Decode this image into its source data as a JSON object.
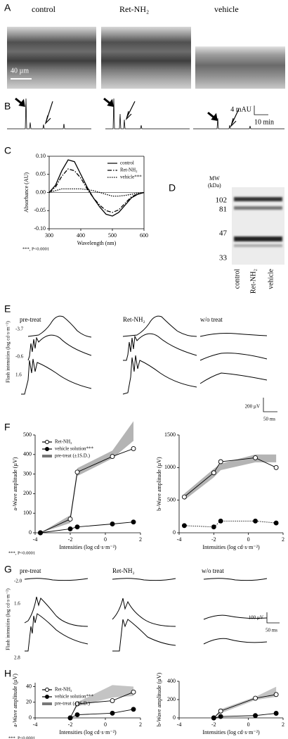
{
  "figure": {
    "panel_labels": [
      "A",
      "B",
      "C",
      "D",
      "E",
      "F",
      "G",
      "H"
    ],
    "A": {
      "columns": [
        "control",
        "Ret-NH₂",
        "vehicle"
      ],
      "scale_bar": "40 µm"
    },
    "B": {
      "scale_y": "4 mAU",
      "scale_x": "10 min"
    },
    "D": {
      "axis_title": "MW",
      "axis_unit": "(kDa)",
      "markers": [
        "102",
        "81",
        "47",
        "33"
      ],
      "lanes": [
        "control",
        "Ret-NH₂",
        "vehicle"
      ]
    },
    "E": {
      "columns": [
        "pre-treat",
        "Ret-NH₂",
        "w/o treat"
      ],
      "intensities": [
        "-3.7",
        "-0.6",
        "1.6"
      ],
      "axis_label": "Flash intensities (log cd·s·m⁻²)",
      "scale_y": "200 µV",
      "scale_x": "50 ms"
    },
    "G": {
      "columns": [
        "pre-treat",
        "Ret-NH₂",
        "w/o treat"
      ],
      "intensities": [
        "-2.0",
        "1.6",
        "2.8"
      ],
      "axis_label": "Flash intensities (log cd·s·m⁻²)",
      "scale_y": "100 µV",
      "scale_x": "50 ms"
    }
  },
  "chart_data": [
    {
      "type": "line",
      "xlabel": "Wavelength (nm)",
      "ylabel": "Absorbance (AU)",
      "annotation": "***, P<0.0001",
      "xlim": [
        300,
        600
      ],
      "xticks": [
        300,
        400,
        500,
        600
      ],
      "ylim": [
        -0.1,
        0.1
      ],
      "yticks": [
        {
          "value": -0.1,
          "label": "-0.10"
        },
        -0.05,
        {
          "value": 0,
          "label": "0.00"
        },
        0.05,
        {
          "value": 0.1,
          "label": "0.10"
        }
      ],
      "frame": true,
      "legend": "upper right",
      "x": [
        300,
        320,
        340,
        360,
        380,
        400,
        420,
        440,
        460,
        480,
        500,
        520,
        540,
        560,
        580,
        600
      ],
      "series": [
        {
          "name": "control",
          "color": "#000000",
          "line_style": "solid",
          "marker": "none",
          "values": [
            0,
            0.02,
            0.06,
            0.09,
            0.085,
            0.05,
            0.015,
            -0.015,
            -0.04,
            -0.06,
            -0.065,
            -0.055,
            -0.035,
            -0.015,
            -0.005,
            0
          ]
        },
        {
          "name": "Ret-NH₂",
          "color": "#000000",
          "line_style": "dashdot",
          "marker": "none",
          "values": [
            0,
            0.015,
            0.045,
            0.065,
            0.06,
            0.04,
            0.01,
            -0.015,
            -0.035,
            -0.05,
            -0.055,
            -0.048,
            -0.03,
            -0.012,
            -0.004,
            0
          ]
        },
        {
          "name": "vehicle***",
          "color": "#000000",
          "line_style": "dotted",
          "marker": "none",
          "values": [
            0,
            0.005,
            0.01,
            0.01,
            0.01,
            0.01,
            0.008,
            0.005,
            0,
            -0.005,
            -0.01,
            -0.01,
            -0.008,
            -0.005,
            -0.002,
            0
          ]
        }
      ]
    },
    {
      "type": "line",
      "xlabel": "Intensities (log cd·s·m⁻²)",
      "ylabel": "a-Wave amplitude (µV)",
      "annotation": "***, P<0.0001",
      "xlim": [
        -4,
        2
      ],
      "xticks": [
        -4,
        -2,
        0,
        2
      ],
      "ylim": [
        0,
        500
      ],
      "yticks": [
        0,
        100,
        200,
        300,
        400,
        500
      ],
      "legend": "upper left",
      "x": [
        -3.7,
        -2,
        -1.6,
        0.4,
        1.6
      ],
      "bands": [
        {
          "name": "pre-treat (±1S.D.)",
          "color": "#b4b4b4",
          "upper": [
            0,
            90,
            330,
            420,
            570
          ],
          "lower": [
            0,
            50,
            290,
            380,
            470
          ]
        }
      ],
      "series": [
        {
          "name": "Ret-NH₂",
          "color": "#000000",
          "line_style": "solid",
          "marker": "open-circle",
          "values": [
            0,
            70,
            310,
            390,
            430
          ]
        },
        {
          "name": "vehicle solution***",
          "color": "#000000",
          "line_style": "solid",
          "marker": "filled-circle",
          "values": [
            0,
            20,
            30,
            45,
            55
          ]
        }
      ]
    },
    {
      "type": "line",
      "xlabel": "Intensities (log cd·s·m⁻²)",
      "ylabel": "b-Wave amplitude (µV)",
      "xlim": [
        -4,
        2
      ],
      "xticks": [
        -4,
        -2,
        0,
        2
      ],
      "ylim": [
        0,
        1500
      ],
      "yticks": [
        0,
        500,
        1000,
        1500
      ],
      "x": [
        -3.7,
        -2,
        -1.6,
        0.4,
        1.6
      ],
      "bands": [
        {
          "color": "#b4b4b4",
          "upper": [
            600,
            980,
            1060,
            1200,
            1200
          ],
          "lower": [
            500,
            850,
            960,
            1080,
            1080
          ]
        }
      ],
      "series": [
        {
          "color": "#000000",
          "line_style": "solid",
          "marker": "open-circle",
          "values": [
            550,
            920,
            1090,
            1150,
            1000
          ]
        },
        {
          "color": "#000000",
          "line_style": "dotted",
          "marker": "filled-circle",
          "values": [
            110,
            90,
            180,
            180,
            150
          ]
        }
      ]
    },
    {
      "type": "line",
      "xlabel": "Intensities (log cd·s·m⁻²)",
      "ylabel": "a-Wave amplitude (µV)",
      "annotation": "***, P<0.0001",
      "xlim": [
        -4,
        2
      ],
      "xticks": [
        -4,
        -2,
        0,
        2
      ],
      "ylim": [
        0,
        45
      ],
      "yticks": [
        0,
        20,
        40
      ],
      "legend": "upper left",
      "x": [
        -2,
        -1.6,
        0.4,
        1.6
      ],
      "bands": [
        {
          "name": "pre-treat (±1S.D.)",
          "color": "#c4c4c4",
          "upper": [
            0,
            20,
            42,
            40
          ],
          "lower": [
            0,
            15,
            26,
            28
          ]
        }
      ],
      "series": [
        {
          "name": "Ret-NH₂",
          "color": "#000000",
          "line_style": "solid",
          "marker": "open-circle",
          "values": [
            0,
            18,
            22,
            33
          ]
        },
        {
          "name": "vehicle solution***",
          "color": "#000000",
          "line_style": "solid",
          "marker": "filled-circle",
          "values": [
            0,
            4,
            6,
            11
          ]
        }
      ]
    },
    {
      "type": "line",
      "xlabel": "Intensities (log cd·s·m⁻²)",
      "ylabel": "b-Wave amplitude (µV)",
      "xlim": [
        -4,
        2
      ],
      "xticks": [
        -4,
        -2,
        0,
        2
      ],
      "ylim": [
        0,
        400
      ],
      "yticks": [
        0,
        200,
        400
      ],
      "x": [
        -2,
        -1.6,
        0.4,
        1.6
      ],
      "bands": [
        {
          "color": "#c4c4c4",
          "upper": [
            0,
            95,
            230,
            340
          ],
          "lower": [
            0,
            50,
            195,
            230
          ]
        }
      ],
      "series": [
        {
          "color": "#000000",
          "line_style": "solid",
          "marker": "open-circle",
          "values": [
            0,
            75,
            215,
            255
          ]
        },
        {
          "color": "#000000",
          "line_style": "solid",
          "marker": "filled-circle",
          "values": [
            0,
            15,
            25,
            50
          ]
        }
      ]
    }
  ]
}
